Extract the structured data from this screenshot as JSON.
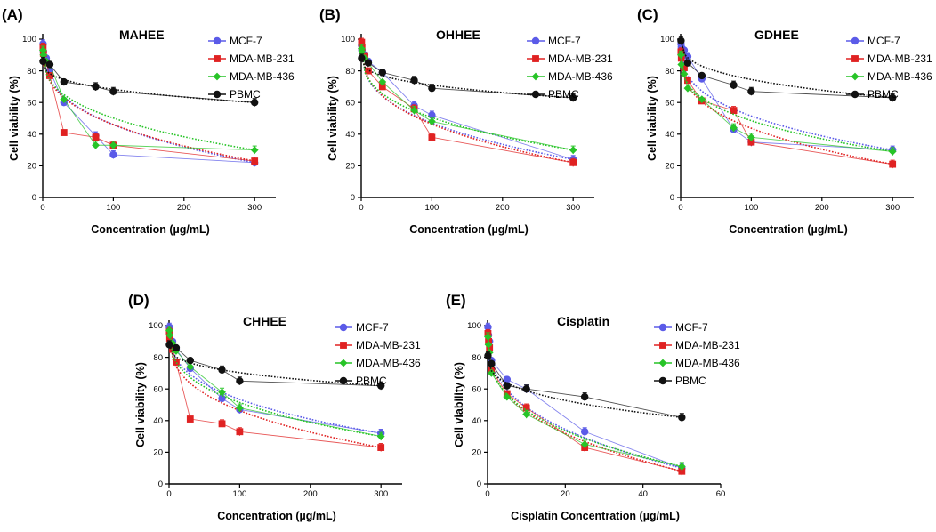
{
  "colors": {
    "mcf7": "#5b5be8",
    "mdamb231": "#e02222",
    "mdamb436": "#27c427",
    "pbmc": "#111111"
  },
  "chart_data": [
    {
      "type": "line",
      "panel": "(A)",
      "title": "MAHEE",
      "xlabel": "Concentration (µg/mL)",
      "ylabel": "Cell viability (%)",
      "xlim": [
        0,
        330
      ],
      "ylim": [
        0,
        100
      ],
      "xticks": [
        0,
        100,
        200,
        300
      ],
      "yticks": [
        0,
        20,
        40,
        60,
        80,
        100
      ],
      "legend_position": "top-right",
      "series": [
        {
          "name": "MCF-7",
          "x": [
            0.5,
            1,
            5,
            10,
            30,
            75,
            100,
            300
          ],
          "y": [
            97,
            92,
            88,
            80,
            60,
            39,
            27,
            22
          ]
        },
        {
          "name": "MDA-MB-231",
          "x": [
            0.5,
            1,
            5,
            10,
            30,
            75,
            100,
            300
          ],
          "y": [
            95,
            91,
            85,
            77,
            41,
            38,
            33,
            23
          ]
        },
        {
          "name": "MDA-MB-436",
          "x": [
            0.5,
            1,
            5,
            10,
            30,
            75,
            100,
            300
          ],
          "y": [
            93,
            90,
            86,
            84,
            62,
            33,
            33,
            30
          ]
        },
        {
          "name": "PBMC",
          "x": [
            0.5,
            10,
            30,
            75,
            100,
            300
          ],
          "y": [
            86,
            84,
            73,
            70,
            67,
            60
          ]
        }
      ]
    },
    {
      "type": "line",
      "panel": "(B)",
      "title": "OHHEE",
      "xlabel": "Concentration (µg/mL)",
      "ylabel": "Cell viability (%)",
      "xlim": [
        0,
        330
      ],
      "ylim": [
        0,
        100
      ],
      "xticks": [
        0,
        100,
        200,
        300
      ],
      "yticks": [
        0,
        20,
        40,
        60,
        80,
        100
      ],
      "legend_position": "top-right",
      "series": [
        {
          "name": "MCF-7",
          "x": [
            0.5,
            1,
            5,
            10,
            30,
            75,
            100,
            300
          ],
          "y": [
            96,
            93,
            90,
            86,
            79,
            58,
            52,
            24
          ]
        },
        {
          "name": "MDA-MB-231",
          "x": [
            0.5,
            1,
            5,
            10,
            30,
            75,
            100,
            300
          ],
          "y": [
            98,
            95,
            89,
            80,
            70,
            56,
            38,
            22
          ]
        },
        {
          "name": "MDA-MB-436",
          "x": [
            0.5,
            1,
            5,
            10,
            30,
            75,
            100,
            300
          ],
          "y": [
            94,
            92,
            88,
            85,
            73,
            55,
            48,
            30
          ]
        },
        {
          "name": "PBMC",
          "x": [
            0.5,
            10,
            30,
            75,
            100,
            300
          ],
          "y": [
            88,
            85,
            79,
            74,
            69,
            63
          ]
        }
      ]
    },
    {
      "type": "line",
      "panel": "(C)",
      "title": "GDHEE",
      "xlabel": "Concentration (µg/mL)",
      "ylabel": "Cell viability (%)",
      "xlim": [
        0,
        330
      ],
      "ylim": [
        0,
        100
      ],
      "xticks": [
        0,
        100,
        200,
        300
      ],
      "yticks": [
        0,
        20,
        40,
        60,
        80,
        100
      ],
      "legend_position": "top-right",
      "series": [
        {
          "name": "MCF-7",
          "x": [
            0.5,
            1,
            5,
            10,
            30,
            75,
            100,
            300
          ],
          "y": [
            97,
            95,
            93,
            89,
            75,
            43,
            35,
            30
          ]
        },
        {
          "name": "MDA-MB-231",
          "x": [
            0.5,
            1,
            5,
            10,
            30,
            75,
            100,
            300
          ],
          "y": [
            92,
            88,
            82,
            74,
            61,
            55,
            35,
            21
          ]
        },
        {
          "name": "MDA-MB-436",
          "x": [
            0.5,
            1,
            5,
            10,
            30,
            75,
            100,
            300
          ],
          "y": [
            90,
            84,
            78,
            69,
            62,
            44,
            38,
            29
          ]
        },
        {
          "name": "PBMC",
          "x": [
            0.5,
            10,
            30,
            75,
            100,
            300
          ],
          "y": [
            99,
            85,
            77,
            71,
            67,
            63
          ]
        }
      ]
    },
    {
      "type": "line",
      "panel": "(D)",
      "title": "CHHEE",
      "xlabel": "Concentration (µg/mL)",
      "ylabel": "Cell viability (%)",
      "xlim": [
        0,
        330
      ],
      "ylim": [
        0,
        100
      ],
      "xticks": [
        0,
        100,
        200,
        300
      ],
      "yticks": [
        0,
        20,
        40,
        60,
        80,
        100
      ],
      "legend_position": "top-right",
      "series": [
        {
          "name": "MCF-7",
          "x": [
            0.5,
            1,
            5,
            10,
            30,
            75,
            100,
            300
          ],
          "y": [
            99,
            95,
            90,
            85,
            73,
            54,
            47,
            32
          ]
        },
        {
          "name": "MDA-MB-231",
          "x": [
            0.5,
            1,
            5,
            10,
            30,
            75,
            100,
            300
          ],
          "y": [
            96,
            92,
            85,
            77,
            41,
            38,
            33,
            23
          ]
        },
        {
          "name": "MDA-MB-436",
          "x": [
            0.5,
            1,
            5,
            10,
            30,
            75,
            100,
            300
          ],
          "y": [
            97,
            94,
            89,
            84,
            74,
            58,
            48,
            30
          ]
        },
        {
          "name": "PBMC",
          "x": [
            0.5,
            10,
            30,
            75,
            100,
            300
          ],
          "y": [
            88,
            86,
            78,
            72,
            65,
            62
          ]
        }
      ]
    },
    {
      "type": "line",
      "panel": "(E)",
      "title": "Cisplatin",
      "xlabel": "Cisplatin Concentration (µg/mL)",
      "ylabel": "Cell viability (%)",
      "xlim": [
        0,
        60
      ],
      "ylim": [
        0,
        100
      ],
      "xticks": [
        0,
        20,
        40,
        60
      ],
      "yticks": [
        0,
        20,
        40,
        60,
        80,
        100
      ],
      "legend_position": "top-right",
      "series": [
        {
          "name": "MCF-7",
          "x": [
            0.1,
            0.25,
            0.5,
            1,
            5,
            10,
            25,
            50
          ],
          "y": [
            99,
            94,
            90,
            78,
            66,
            60,
            33,
            10
          ]
        },
        {
          "name": "MDA-MB-231",
          "x": [
            0.1,
            0.25,
            0.5,
            1,
            5,
            10,
            25,
            50
          ],
          "y": [
            95,
            90,
            86,
            72,
            57,
            48,
            23,
            8
          ]
        },
        {
          "name": "MDA-MB-436",
          "x": [
            0.1,
            0.25,
            0.5,
            1,
            5,
            10,
            25,
            50
          ],
          "y": [
            93,
            88,
            83,
            70,
            55,
            44,
            25,
            11
          ]
        },
        {
          "name": "PBMC",
          "x": [
            0.1,
            1,
            5,
            10,
            25,
            50
          ],
          "y": [
            81,
            76,
            62,
            60,
            55,
            42
          ]
        }
      ]
    }
  ]
}
